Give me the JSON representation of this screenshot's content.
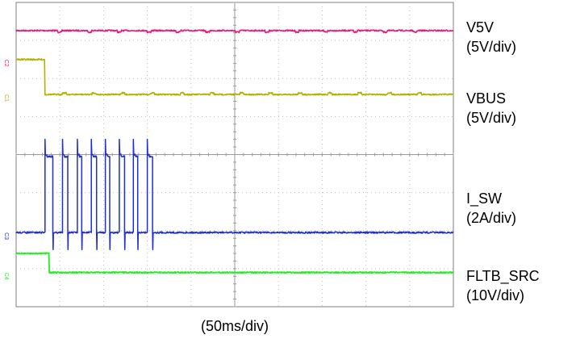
{
  "chart_data": {
    "type": "line",
    "title": "",
    "xlabel": "(50ms/div)",
    "ylabel": "",
    "grid": true,
    "x_divisions": 10,
    "y_divisions": 8,
    "xlim": [
      0,
      500
    ],
    "x_unit": "ms",
    "channel_markers": [
      "C2",
      "C1",
      "C3",
      "C4"
    ],
    "series": [
      {
        "name": "V5V",
        "scale": "(5V/div)",
        "color": "#e8197a",
        "values_div": {
          "steady": 7.26,
          "dip": 7.22
        },
        "dips_at_ms": [
          48,
          82,
          116,
          150,
          183,
          217,
          251,
          285,
          319,
          352,
          386,
          420,
          454
        ]
      },
      {
        "name": "VBUS",
        "scale": "(5V/div)",
        "color": "#b5b000",
        "values_div": {
          "before": 6.5,
          "after": 5.58,
          "bump": 5.62
        },
        "step_at_ms": 33,
        "bumps_at_ms": [
          53,
          87,
          120,
          154,
          188,
          222,
          256,
          289,
          323,
          357,
          391,
          425,
          459
        ]
      },
      {
        "name": "I_SW",
        "scale": "(2A/div)",
        "color": "#1e2dd6",
        "values_div": {
          "base": 1.95,
          "high": 3.95,
          "spike": 4.4,
          "undershoot": 1.5
        },
        "pulses_ms": [
          [
            33,
            42
          ],
          [
            53,
            59
          ],
          [
            70,
            75
          ],
          [
            86,
            92
          ],
          [
            102,
            107
          ],
          [
            118,
            124
          ],
          [
            134,
            139
          ],
          [
            150,
            156
          ]
        ]
      },
      {
        "name": "FLTB_SRC",
        "scale": "(10V/div)",
        "color": "#22ee22",
        "values_div": {
          "before": 1.4,
          "after": 0.9
        },
        "step_at_ms": 38
      }
    ]
  }
}
